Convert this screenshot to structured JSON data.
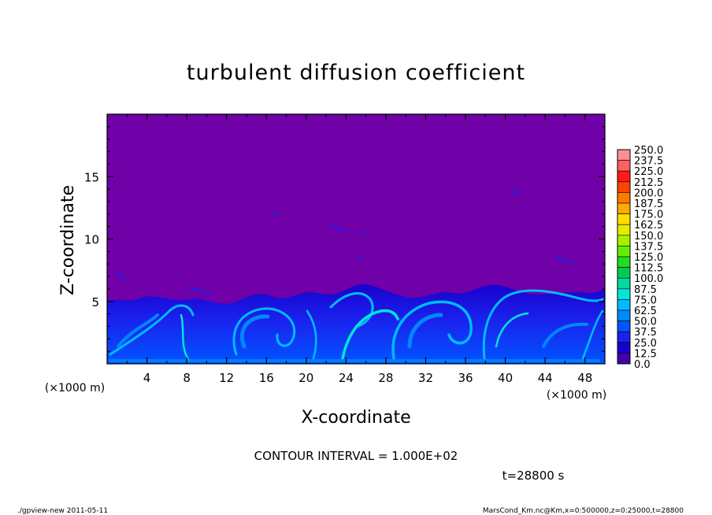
{
  "chart_data": {
    "type": "heatmap",
    "title": "turbulent diffusion coefficient",
    "xlabel": "X-coordinate",
    "ylabel": "Z-coordinate",
    "x_unit": "(×1000 m)",
    "x_unit_right": "(×1000 m)",
    "xlim": [
      0,
      50
    ],
    "ylim": [
      0,
      20
    ],
    "x_ticks": [
      "4",
      "8",
      "12",
      "16",
      "20",
      "24",
      "28",
      "32",
      "36",
      "40",
      "44",
      "48"
    ],
    "x_tick_values": [
      4,
      8,
      12,
      16,
      20,
      24,
      28,
      32,
      36,
      40,
      44,
      48
    ],
    "y_ticks": [
      "5",
      "10",
      "15"
    ],
    "y_tick_values": [
      5,
      10,
      15
    ],
    "colorbar": {
      "levels": [
        "250.0",
        "237.5",
        "225.0",
        "212.5",
        "200.0",
        "187.5",
        "175.0",
        "162.5",
        "150.0",
        "137.5",
        "125.0",
        "112.5",
        "100.0",
        "87.5",
        "75.0",
        "62.5",
        "50.0",
        "37.5",
        "25.0",
        "12.5",
        "0.0"
      ],
      "colors": [
        "#ff9090",
        "#ff6060",
        "#ff1a1a",
        "#ff4400",
        "#ff7a00",
        "#ffaa00",
        "#ffdd00",
        "#ddee00",
        "#a8ee00",
        "#66ee00",
        "#22dd22",
        "#00cc55",
        "#00dd99",
        "#00e6dd",
        "#00bbff",
        "#0088ff",
        "#0055ff",
        "#1a22ee",
        "#1a00cc",
        "#4400aa",
        "#7000a8"
      ]
    },
    "background_color": "#7000a8",
    "annotation_contour": "CONTOUR INTERVAL = 1.000E+02",
    "annotation_time": "t=28800 s",
    "footer_left": "./gpview-new  2011-05-11",
    "footer_right": "MarsCond_Km.nc@Km,x=0:500000,z=0:25000,t=28800"
  }
}
